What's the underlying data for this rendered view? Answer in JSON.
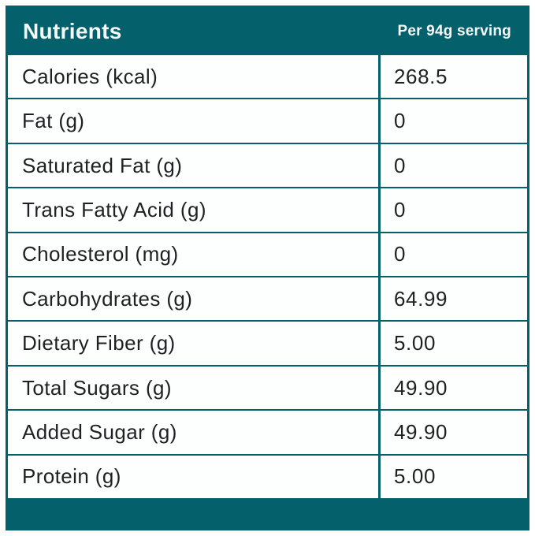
{
  "colors": {
    "teal": "#04606a",
    "row-bg": "#fdfefe",
    "text": "#1f2022",
    "header-text": "#f4fafa"
  },
  "header": {
    "title": "Nutrients",
    "serving_label": "Per 94g serving"
  },
  "rows": [
    {
      "label": "Calories (kcal)",
      "value": "268.5"
    },
    {
      "label": "Fat (g)",
      "value": "0"
    },
    {
      "label": "Saturated Fat (g)",
      "value": "0"
    },
    {
      "label": "Trans Fatty Acid (g)",
      "value": "0"
    },
    {
      "label": "Cholesterol (mg)",
      "value": "0"
    },
    {
      "label": "Carbohydrates (g)",
      "value": "64.99"
    },
    {
      "label": "Dietary Fiber (g)",
      "value": "5.00"
    },
    {
      "label": "Total Sugars (g)",
      "value": "49.90"
    },
    {
      "label": "Added Sugar (g)",
      "value": "49.90"
    },
    {
      "label": "Protein (g)",
      "value": "5.00"
    }
  ]
}
